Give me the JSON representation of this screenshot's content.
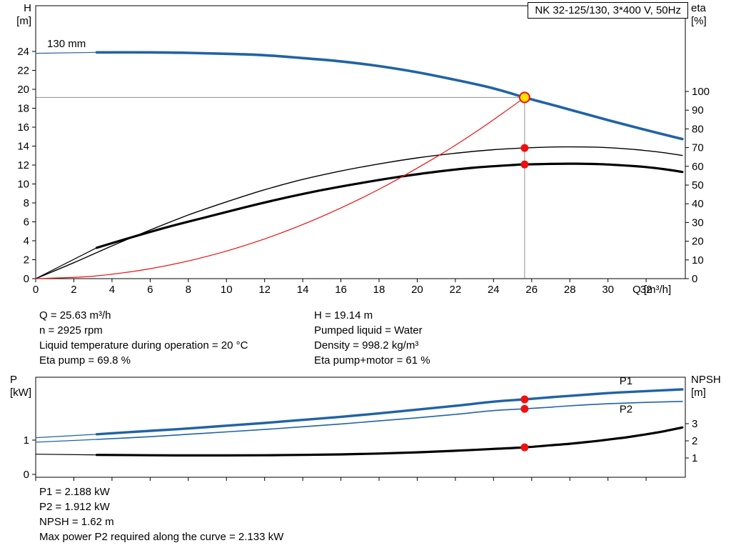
{
  "colors": {
    "blue": "#2063a4",
    "black": "#000000",
    "red": "#ee1111",
    "gray": "#909090",
    "yellow": "#ffe105"
  },
  "operating_point": {
    "left": [
      "Q = 25.63 m³/h",
      "n = 2925 rpm",
      "Liquid temperature during operation = 20 °C",
      "Eta pump = 69.8 %"
    ],
    "right": [
      "H = 19.14 m",
      "Pumped liquid = Water",
      "Density = 998.2 kg/m³",
      "Eta pump+motor = 61 %"
    ]
  },
  "power_block": [
    "P1 = 2.188 kW",
    "P2 = 1.912 kW",
    "NPSH = 1.62 m",
    "Max power P2 required along the curve = 2.133 kW"
  ],
  "chart_data": [
    {
      "type": "line",
      "title": "NK 32-125/130, 3*400 V, 50Hz",
      "x_axis": {
        "label": "Q [m³/h]",
        "min": 0,
        "max": 34,
        "ticks": [
          0,
          2,
          4,
          6,
          8,
          10,
          12,
          14,
          16,
          18,
          20,
          22,
          24,
          26,
          28,
          30,
          32
        ],
        "show_tick_labels": true
      },
      "y_left": {
        "label_lines": [
          "H",
          "[m]"
        ],
        "scale": "H",
        "min": 0,
        "max": 28.8,
        "ticks": [
          0,
          2,
          4,
          6,
          8,
          10,
          12,
          14,
          16,
          18,
          20,
          22,
          24
        ]
      },
      "y_right": {
        "label_lines": [
          "eta",
          "[%]"
        ],
        "scale": "eta",
        "min": 0,
        "max": 145,
        "ticks": [
          0,
          10,
          20,
          30,
          40,
          50,
          60,
          70,
          80,
          90,
          100
        ]
      },
      "guides": {
        "q": 25.63,
        "h": 19.14
      },
      "series": [
        {
          "name": "head-curve-lead-in",
          "axis": "H",
          "color": "blue",
          "width": 1.2,
          "points": [
            [
              0,
              23.8
            ],
            [
              3.2,
              23.9
            ]
          ]
        },
        {
          "name": "head-curve",
          "axis": "H",
          "color": "blue",
          "width": 3.6,
          "points": [
            [
              3.2,
              23.9
            ],
            [
              6,
              23.9
            ],
            [
              8,
              23.85
            ],
            [
              10,
              23.75
            ],
            [
              12,
              23.6
            ],
            [
              14,
              23.3
            ],
            [
              16,
              22.95
            ],
            [
              18,
              22.45
            ],
            [
              20,
              21.8
            ],
            [
              22,
              21.0
            ],
            [
              24,
              20.1
            ],
            [
              25.63,
              19.14
            ],
            [
              27,
              18.4
            ],
            [
              28,
              17.85
            ],
            [
              30,
              16.75
            ],
            [
              32,
              15.7
            ],
            [
              33.9,
              14.75
            ]
          ]
        },
        {
          "name": "eta-pump-curve",
          "axis": "eta",
          "color": "black",
          "width": 1.4,
          "points": [
            [
              0,
              0
            ],
            [
              2,
              8.5
            ],
            [
              4,
              17.5
            ],
            [
              6,
              26
            ],
            [
              8,
              34
            ],
            [
              10,
              41
            ],
            [
              12,
              47.5
            ],
            [
              14,
              53
            ],
            [
              16,
              57.5
            ],
            [
              18,
              61.3
            ],
            [
              20,
              64.5
            ],
            [
              22,
              67
            ],
            [
              24,
              68.9
            ],
            [
              25.63,
              69.8
            ],
            [
              27,
              70.3
            ],
            [
              28,
              70.4
            ],
            [
              29.5,
              70.2
            ],
            [
              31,
              69.3
            ],
            [
              32,
              68.4
            ],
            [
              33,
              67.2
            ],
            [
              33.9,
              65.8
            ]
          ]
        },
        {
          "name": "eta-pump-motor-lead-in",
          "axis": "eta",
          "color": "black",
          "width": 1.2,
          "points": [
            [
              0,
              0
            ],
            [
              3.2,
              16.5
            ]
          ]
        },
        {
          "name": "eta-pump-motor-curve",
          "axis": "eta",
          "color": "black",
          "width": 3.2,
          "points": [
            [
              3.2,
              16.5
            ],
            [
              5,
              22
            ],
            [
              7,
              27.8
            ],
            [
              9,
              33
            ],
            [
              11,
              38.2
            ],
            [
              13,
              43
            ],
            [
              15,
              47.3
            ],
            [
              17,
              51
            ],
            [
              19,
              54.3
            ],
            [
              21,
              57.1
            ],
            [
              23,
              59.3
            ],
            [
              25,
              60.7
            ],
            [
              25.63,
              61
            ],
            [
              27,
              61.3
            ],
            [
              28,
              61.4
            ],
            [
              29.5,
              61.2
            ],
            [
              31,
              60.4
            ],
            [
              32,
              59.6
            ],
            [
              33,
              58.4
            ],
            [
              33.9,
              57
            ]
          ]
        },
        {
          "name": "system-curve",
          "axis": "H",
          "color": "red",
          "width": 1.2,
          "points": [
            [
              0,
              0
            ],
            [
              3,
              0.26
            ],
            [
              6,
              1.05
            ],
            [
              9,
              2.36
            ],
            [
              12,
              4.2
            ],
            [
              15,
              6.56
            ],
            [
              18,
              9.44
            ],
            [
              21,
              12.85
            ],
            [
              23,
              15.4
            ],
            [
              24.5,
              17.5
            ],
            [
              25.63,
              19.14
            ]
          ]
        }
      ],
      "markers": [
        {
          "name": "duty-point",
          "q": 25.63,
          "v": 19.14,
          "axis": "H",
          "r": 7,
          "fill": "yellow",
          "stroke": "red"
        },
        {
          "name": "eta-pump-duty-dot",
          "q": 25.63,
          "v": 69.8,
          "axis": "eta",
          "r": 5.5,
          "fill": "red"
        },
        {
          "name": "eta-pump-motor-duty-dot",
          "q": 25.63,
          "v": 61,
          "axis": "eta",
          "r": 5.5,
          "fill": "red"
        }
      ],
      "annotations": [
        {
          "name": "impeller-label",
          "text": "130 mm",
          "q": 0.6,
          "v": 24.45,
          "axis": "H",
          "color": "black"
        }
      ]
    },
    {
      "type": "line",
      "title": "",
      "x_axis": {
        "label": "",
        "min": 0,
        "max": 34,
        "ticks": [
          0,
          2,
          4,
          6,
          8,
          10,
          12,
          14,
          16,
          18,
          20,
          22,
          24,
          26,
          28,
          30,
          32
        ],
        "show_tick_labels": false
      },
      "y_left": {
        "label_lines": [
          "P",
          "[kW]"
        ],
        "scale": "P",
        "min": 0,
        "max": 2.83,
        "ticks": [
          0,
          1
        ]
      },
      "y_right": {
        "label_lines": [
          "NPSH",
          "[m]"
        ],
        "scale": "NPSH",
        "min": 0,
        "max": 5.7,
        "ticks": [
          1,
          2,
          3
        ]
      },
      "series": [
        {
          "name": "p1-curve-lead-in",
          "axis": "P",
          "color": "blue",
          "width": 1.2,
          "points": [
            [
              0,
              1.07
            ],
            [
              3.2,
              1.17
            ]
          ]
        },
        {
          "name": "p1-curve",
          "axis": "P",
          "color": "blue",
          "width": 3.4,
          "points": [
            [
              3.2,
              1.17
            ],
            [
              6,
              1.27
            ],
            [
              8,
              1.34
            ],
            [
              10,
              1.42
            ],
            [
              12,
              1.5
            ],
            [
              14,
              1.59
            ],
            [
              16,
              1.68
            ],
            [
              18,
              1.78
            ],
            [
              20,
              1.89
            ],
            [
              22,
              2.0
            ],
            [
              24,
              2.12
            ],
            [
              25.63,
              2.188
            ],
            [
              27,
              2.25
            ],
            [
              28,
              2.29
            ],
            [
              30,
              2.37
            ],
            [
              32,
              2.43
            ],
            [
              33.9,
              2.48
            ]
          ]
        },
        {
          "name": "p2-curve-lead-in",
          "axis": "P",
          "color": "blue",
          "width": 1.2,
          "points": [
            [
              0,
              0.94
            ],
            [
              3.2,
              1.02
            ]
          ]
        },
        {
          "name": "p2-curve",
          "axis": "P",
          "color": "blue",
          "width": 1.6,
          "points": [
            [
              3.2,
              1.02
            ],
            [
              6,
              1.1
            ],
            [
              8,
              1.17
            ],
            [
              10,
              1.24
            ],
            [
              12,
              1.31
            ],
            [
              14,
              1.39
            ],
            [
              16,
              1.47
            ],
            [
              18,
              1.56
            ],
            [
              20,
              1.65
            ],
            [
              22,
              1.75
            ],
            [
              24,
              1.86
            ],
            [
              25.63,
              1.912
            ],
            [
              27,
              1.96
            ],
            [
              28,
              2.0
            ],
            [
              30,
              2.06
            ],
            [
              32,
              2.1
            ],
            [
              33.9,
              2.13
            ]
          ]
        },
        {
          "name": "npsh-curve-lead-in",
          "axis": "NPSH",
          "color": "black",
          "width": 1.2,
          "points": [
            [
              0,
              1.22
            ],
            [
              3.2,
              1.18
            ]
          ]
        },
        {
          "name": "npsh-curve",
          "axis": "NPSH",
          "color": "black",
          "width": 3.2,
          "points": [
            [
              3.2,
              1.18
            ],
            [
              6,
              1.16
            ],
            [
              8,
              1.15
            ],
            [
              10,
              1.15
            ],
            [
              12,
              1.16
            ],
            [
              14,
              1.18
            ],
            [
              16,
              1.21
            ],
            [
              18,
              1.26
            ],
            [
              20,
              1.33
            ],
            [
              22,
              1.42
            ],
            [
              24,
              1.53
            ],
            [
              25.63,
              1.62
            ],
            [
              27,
              1.74
            ],
            [
              28,
              1.83
            ],
            [
              29,
              1.94
            ],
            [
              30,
              2.07
            ],
            [
              31,
              2.21
            ],
            [
              32,
              2.38
            ],
            [
              33,
              2.57
            ],
            [
              33.9,
              2.78
            ]
          ]
        }
      ],
      "markers": [
        {
          "name": "p1-duty-dot",
          "q": 25.63,
          "v": 2.188,
          "axis": "P",
          "r": 5.5,
          "fill": "red"
        },
        {
          "name": "p2-duty-dot",
          "q": 25.63,
          "v": 1.912,
          "axis": "P",
          "r": 5.5,
          "fill": "red"
        },
        {
          "name": "npsh-duty-dot",
          "q": 25.63,
          "v": 1.62,
          "axis": "NPSH",
          "r": 5.5,
          "fill": "red"
        }
      ],
      "annotations": [
        {
          "name": "p1-curve-label",
          "text": "P1",
          "q": 30.6,
          "v": 2.62,
          "axis": "P",
          "color": "blue"
        },
        {
          "name": "p2-curve-label",
          "text": "P2",
          "q": 30.6,
          "v": 1.8,
          "axis": "P",
          "color": "blue"
        }
      ]
    }
  ]
}
